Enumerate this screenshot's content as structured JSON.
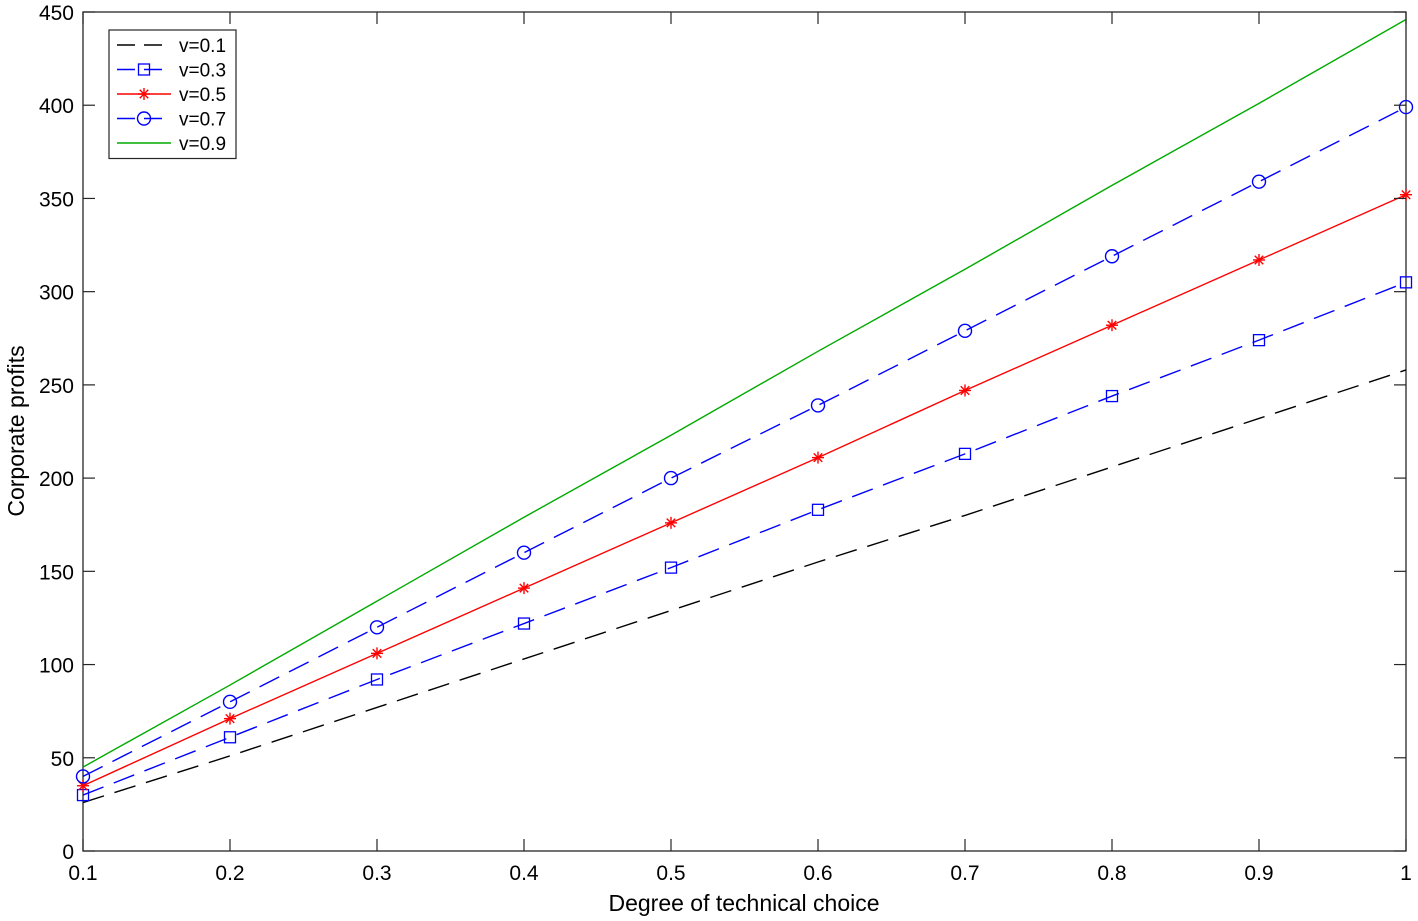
{
  "chart_data": {
    "type": "line",
    "title": "",
    "xlabel": "Degree of technical choice",
    "ylabel": "Corporate profits",
    "xlim": [
      0.1,
      1
    ],
    "ylim": [
      0,
      450
    ],
    "xticks": [
      "0.1",
      "0.2",
      "0.3",
      "0.4",
      "0.5",
      "0.6",
      "0.7",
      "0.8",
      "0.9",
      "1"
    ],
    "yticks": [
      "0",
      "50",
      "100",
      "150",
      "200",
      "250",
      "300",
      "350",
      "400",
      "450"
    ],
    "grid": false,
    "legend_position": "top-left",
    "x": [
      0.1,
      0.2,
      0.3,
      0.4,
      0.5,
      0.6,
      0.7,
      0.8,
      0.9,
      1.0
    ],
    "series": [
      {
        "name": "v=0.1",
        "color": "#000000",
        "line_style": "dashed",
        "marker": "none",
        "values": [
          26,
          51,
          77,
          103,
          129,
          155,
          180,
          206,
          232,
          258
        ]
      },
      {
        "name": "v=0.3",
        "color": "#0000ff",
        "line_style": "dashed",
        "marker": "square",
        "values": [
          30,
          61,
          92,
          122,
          152,
          183,
          213,
          244,
          274,
          305
        ]
      },
      {
        "name": "v=0.5",
        "color": "#ff0000",
        "line_style": "solid",
        "marker": "asterisk",
        "values": [
          35,
          71,
          106,
          141,
          176,
          211,
          247,
          282,
          317,
          352
        ]
      },
      {
        "name": "v=0.7",
        "color": "#0000ff",
        "line_style": "dashed",
        "marker": "circle",
        "values": [
          40,
          80,
          120,
          160,
          200,
          239,
          279,
          319,
          359,
          399
        ]
      },
      {
        "name": "v=0.9",
        "color": "#00aa00",
        "line_style": "solid",
        "marker": "none",
        "values": [
          45,
          89,
          134,
          179,
          223,
          268,
          312,
          357,
          401,
          446
        ]
      }
    ]
  }
}
